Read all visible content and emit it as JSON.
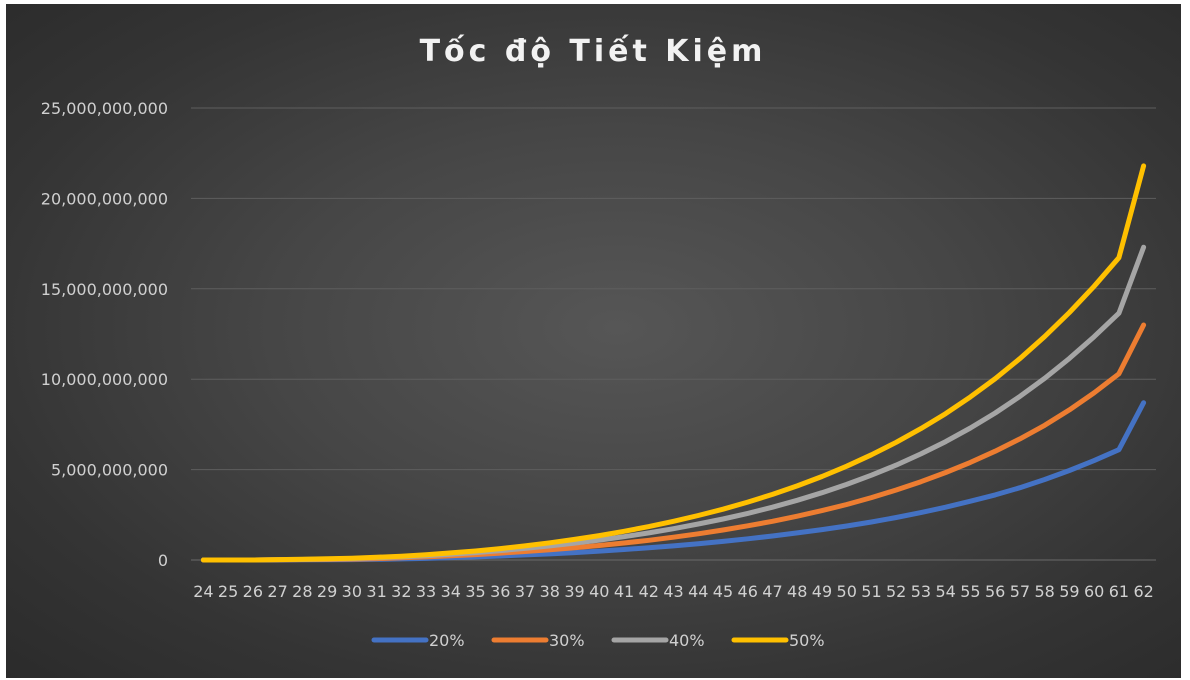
{
  "chart_data": {
    "type": "line",
    "title": "Tốc độ Tiết Kiệm",
    "xlabel": "",
    "ylabel": "",
    "ylim": [
      0,
      25000000000
    ],
    "yticks": [
      0,
      5000000000,
      10000000000,
      15000000000,
      20000000000,
      25000000000
    ],
    "ytick_labels": [
      "0",
      "5,000,000,000",
      "10,000,000,000",
      "15,000,000,000",
      "20,000,000,000",
      "25,000,000,000"
    ],
    "grid": true,
    "legend_position": "bottom",
    "x": [
      "24",
      "25",
      "26",
      "27",
      "28",
      "29",
      "30",
      "31",
      "32",
      "33",
      "34",
      "35",
      "36",
      "37",
      "38",
      "39",
      "40",
      "41",
      "42",
      "43",
      "44",
      "45",
      "46",
      "47",
      "48",
      "49",
      "50",
      "51",
      "52",
      "53",
      "54",
      "55",
      "56",
      "57",
      "58",
      "59",
      "60",
      "61",
      "62"
    ],
    "series": [
      {
        "name": "20%",
        "color": "#4472c4",
        "values": [
          0,
          0,
          0,
          5000000,
          10000000,
          15000000,
          20000000,
          40000000,
          60000000,
          90000000,
          130000000,
          170000000,
          220000000,
          280000000,
          340000000,
          410000000,
          490000000,
          580000000,
          680000000,
          780000000,
          900000000,
          1030000000,
          1170000000,
          1330000000,
          1500000000,
          1680000000,
          1880000000,
          2100000000,
          2350000000,
          2620000000,
          2920000000,
          3250000000,
          3600000000,
          4000000000,
          4450000000,
          4950000000,
          5500000000,
          6100000000,
          8700000000
        ]
      },
      {
        "name": "30%",
        "color": "#ed7d31",
        "values": [
          0,
          0,
          0,
          10000000,
          20000000,
          30000000,
          50000000,
          80000000,
          120000000,
          170000000,
          230000000,
          300000000,
          380000000,
          470000000,
          570000000,
          680000000,
          800000000,
          940000000,
          1090000000,
          1260000000,
          1450000000,
          1660000000,
          1890000000,
          2140000000,
          2420000000,
          2730000000,
          3070000000,
          3450000000,
          3870000000,
          4330000000,
          4840000000,
          5400000000,
          6020000000,
          6700000000,
          7450000000,
          8300000000,
          9250000000,
          10300000000,
          13000000000
        ]
      },
      {
        "name": "40%",
        "color": "#a5a5a5",
        "values": [
          0,
          0,
          0,
          15000000,
          30000000,
          50000000,
          80000000,
          120000000,
          170000000,
          240000000,
          320000000,
          410000000,
          520000000,
          640000000,
          780000000,
          930000000,
          1100000000,
          1290000000,
          1500000000,
          1730000000,
          1990000000,
          2270000000,
          2580000000,
          2920000000,
          3300000000,
          3720000000,
          4180000000,
          4690000000,
          5250000000,
          5870000000,
          6550000000,
          7300000000,
          8130000000,
          9050000000,
          10050000000,
          11150000000,
          12350000000,
          13650000000,
          17300000000
        ]
      },
      {
        "name": "50%",
        "color": "#ffc000",
        "values": [
          0,
          0,
          0,
          20000000,
          40000000,
          65000000,
          100000000,
          150000000,
          210000000,
          290000000,
          390000000,
          500000000,
          630000000,
          780000000,
          950000000,
          1140000000,
          1350000000,
          1590000000,
          1850000000,
          2140000000,
          2460000000,
          2810000000,
          3200000000,
          3630000000,
          4100000000,
          4620000000,
          5190000000,
          5820000000,
          6510000000,
          7270000000,
          8100000000,
          9020000000,
          10030000000,
          11140000000,
          12360000000,
          13690000000,
          15140000000,
          16720000000,
          21800000000
        ]
      }
    ]
  }
}
